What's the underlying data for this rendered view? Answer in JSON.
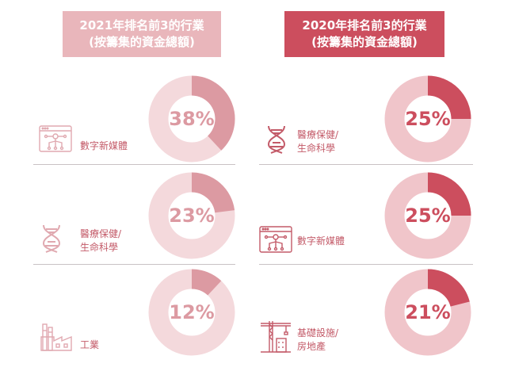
{
  "headers": {
    "left": [
      "2021年排名前3的行業",
      "(按籌集的資金總額)"
    ],
    "right": [
      "2020年排名前3的行業",
      "(按籌集的資金總額)"
    ]
  },
  "colors": {
    "left_header": "#e9b6bb",
    "right_header": "#cc4e5e",
    "left_fill": "#dc9aa2",
    "left_track": "#f4d9dc",
    "right_fill": "#cc4e5e",
    "right_track": "#f0c5ca",
    "label": "#c35a68"
  },
  "chart_data": [
    {
      "type": "pie",
      "title": "2021年排名前3的行業 (按籌集的資金總額)",
      "categories": [
        "數字新媒體",
        "醫療保健/生命科學",
        "工業"
      ],
      "values": [
        38,
        23,
        12
      ],
      "display": [
        "38%",
        "23%",
        "12%"
      ],
      "icons": [
        "digital-media-icon",
        "dna-icon",
        "factory-icon"
      ],
      "label_lines": [
        [
          "數字新媒體"
        ],
        [
          "醫療保健/",
          "生命科學"
        ],
        [
          "工業"
        ]
      ]
    },
    {
      "type": "pie",
      "title": "2020年排名前3的行業 (按籌集的資金總額)",
      "categories": [
        "醫療保健/生命科學",
        "數字新媒體",
        "基礎設施/房地產"
      ],
      "values": [
        25,
        25,
        21
      ],
      "display": [
        "25%",
        "25%",
        "21%"
      ],
      "icons": [
        "dna-icon",
        "digital-media-icon",
        "construction-crane-icon"
      ],
      "label_lines": [
        [
          "醫療保健/",
          "生命科學"
        ],
        [
          "數字新媒體"
        ],
        [
          "基礎設施/",
          "房地產"
        ]
      ]
    }
  ]
}
